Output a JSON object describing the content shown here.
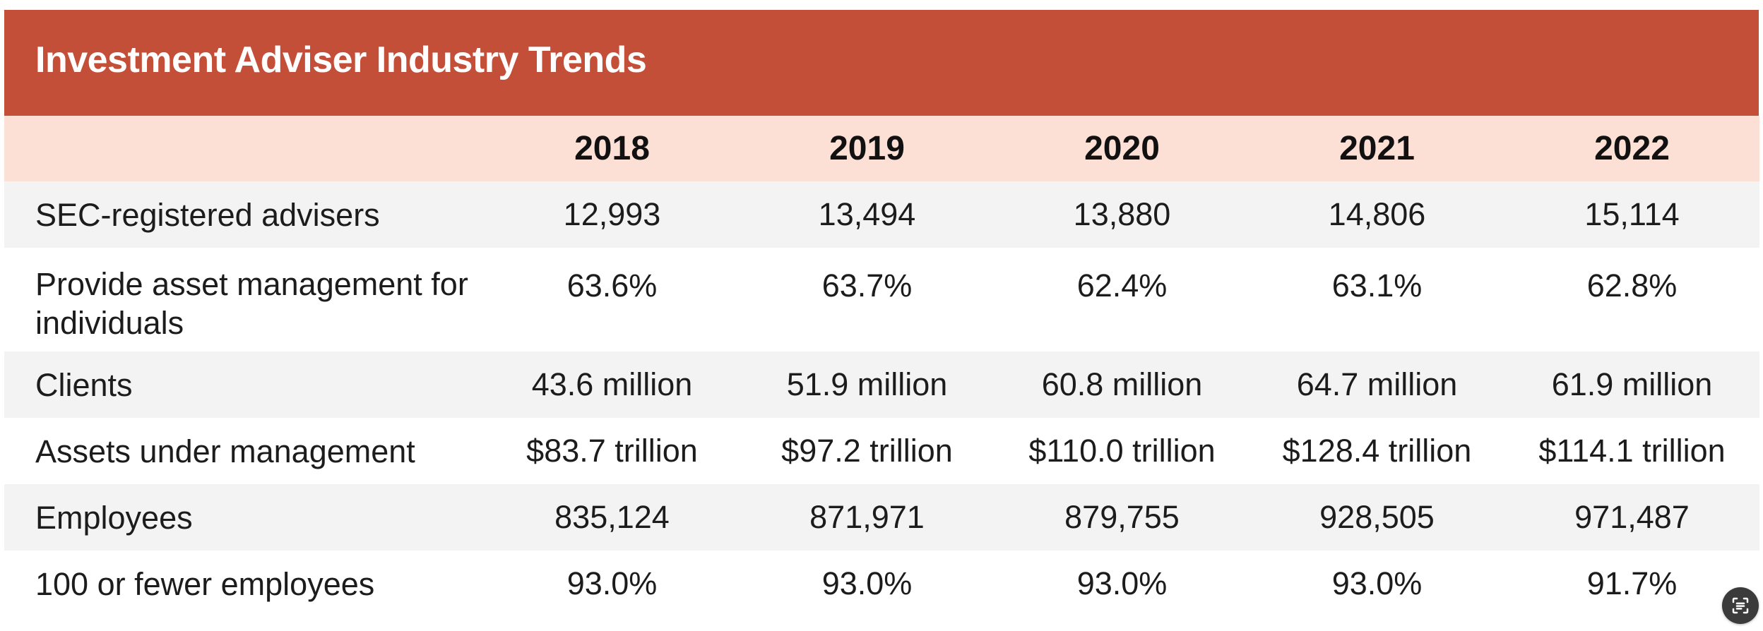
{
  "title": "Investment Adviser Industry Trends",
  "colors": {
    "title_bar": "#c44f39",
    "header_row": "#fde0d5",
    "shaded_row": "#f3f3f3"
  },
  "table": {
    "columns": [
      "",
      "2018",
      "2019",
      "2020",
      "2021",
      "2022"
    ],
    "rows": [
      {
        "label": "SEC-registered advisers",
        "values": [
          "12,993",
          "13,494",
          "13,880",
          "14,806",
          "15,114"
        ]
      },
      {
        "label": "Provide asset management for individuals",
        "values": [
          "63.6%",
          "63.7%",
          "62.4%",
          "63.1%",
          "62.8%"
        ]
      },
      {
        "label": "Clients",
        "values": [
          "43.6 million",
          "51.9 million",
          "60.8 million",
          "64.7 million",
          "61.9 million"
        ]
      },
      {
        "label": "Assets under management",
        "values": [
          "$83.7 trillion",
          "$97.2 trillion",
          "$110.0 trillion",
          "$128.4 trillion",
          "$114.1 trillion"
        ]
      },
      {
        "label": "Employees",
        "values": [
          "835,124",
          "871,971",
          "879,755",
          "928,505",
          "971,487"
        ]
      },
      {
        "label": "100 or fewer employees",
        "values": [
          "93.0%",
          "93.0%",
          "93.0%",
          "93.0%",
          "91.7%"
        ]
      }
    ]
  },
  "chart_data": {
    "type": "table",
    "title": "Investment Adviser Industry Trends",
    "columns": [
      "2018",
      "2019",
      "2020",
      "2021",
      "2022"
    ],
    "rows": [
      {
        "name": "SEC-registered advisers",
        "values": [
          12993,
          13494,
          13880,
          14806,
          15114
        ]
      },
      {
        "name": "Provide asset management for individuals",
        "values": [
          63.6,
          63.7,
          62.4,
          63.1,
          62.8
        ],
        "unit": "%"
      },
      {
        "name": "Clients",
        "values": [
          43.6,
          51.9,
          60.8,
          64.7,
          61.9
        ],
        "unit": "million"
      },
      {
        "name": "Assets under management",
        "values": [
          83.7,
          97.2,
          110.0,
          128.4,
          114.1
        ],
        "unit": "$ trillion"
      },
      {
        "name": "Employees",
        "values": [
          835124,
          871971,
          879755,
          928505,
          971487
        ]
      },
      {
        "name": "100 or fewer employees",
        "values": [
          93.0,
          93.0,
          93.0,
          93.0,
          91.7
        ],
        "unit": "%"
      }
    ]
  },
  "floating_button": {
    "icon": "scan-text-icon"
  }
}
